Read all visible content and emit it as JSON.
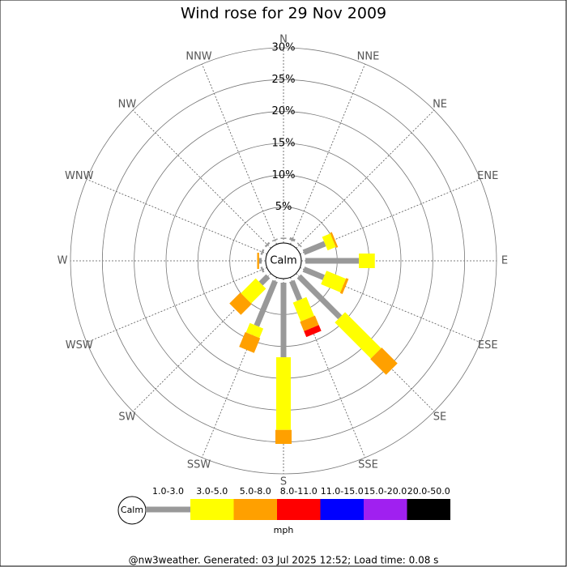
{
  "chart_data": {
    "type": "windrose",
    "title": "Wind rose for 29 Nov 2009",
    "categories": [
      "N",
      "NNE",
      "NE",
      "ENE",
      "E",
      "ESE",
      "SE",
      "SSE",
      "S",
      "SSW",
      "SW",
      "WSW",
      "W",
      "WNW",
      "NW",
      "NNW"
    ],
    "series": [
      {
        "name": "1.0-3.0",
        "color": "#999999",
        "values": [
          0.2,
          0.4,
          0.2,
          3.6,
          8.4,
          3.4,
          9.1,
          3.2,
          11.7,
          7.6,
          1.6,
          0.3,
          0.4,
          0.3,
          0.3,
          0.2
        ]
      },
      {
        "name": "3.0-5.0",
        "color": "#ffff00",
        "values": [
          0,
          0,
          0,
          1.4,
          2.5,
          3.3,
          8.0,
          3.2,
          11.4,
          1.6,
          3.3,
          0,
          0,
          0,
          0,
          0
        ]
      },
      {
        "name": "5.0-8.0",
        "color": "#ffa000",
        "values": [
          0,
          0,
          0,
          0.3,
          0,
          0.4,
          3.5,
          1.6,
          2.2,
          2.5,
          2.4,
          0,
          0.3,
          0,
          0,
          0
        ]
      },
      {
        "name": "8.0-11.0",
        "color": "#ff0000",
        "values": [
          0,
          0,
          0,
          0,
          0,
          0,
          0,
          1.0,
          0,
          0,
          0,
          0,
          0,
          0,
          0,
          0
        ]
      },
      {
        "name": "11.0-15.0",
        "color": "#0000ff",
        "values": [
          0,
          0,
          0,
          0,
          0,
          0,
          0,
          0,
          0,
          0,
          0,
          0,
          0,
          0,
          0,
          0
        ]
      },
      {
        "name": "15.0-20.0",
        "color": "#a020f0",
        "values": [
          0,
          0,
          0,
          0,
          0,
          0,
          0,
          0,
          0,
          0,
          0,
          0,
          0,
          0,
          0,
          0
        ]
      },
      {
        "name": "20.0-50.0",
        "color": "#000000",
        "values": [
          0,
          0,
          0,
          0,
          0,
          0,
          0,
          0,
          0,
          0,
          0,
          0,
          0,
          0,
          0,
          0
        ]
      }
    ],
    "ylim": [
      0,
      30
    ],
    "yticks": [
      {
        "value": 5,
        "label": "5%"
      },
      {
        "value": 10,
        "label": "10%"
      },
      {
        "value": 15,
        "label": "15%"
      },
      {
        "value": 20,
        "label": "20%"
      },
      {
        "value": 25,
        "label": "25%"
      },
      {
        "value": 30,
        "label": "30%"
      }
    ],
    "calm_label": "Calm",
    "legend_unit": "mph",
    "footer": "@nw3weather. Generated: 03 Jul 2025 12:52; Load time: 0.08 s"
  }
}
